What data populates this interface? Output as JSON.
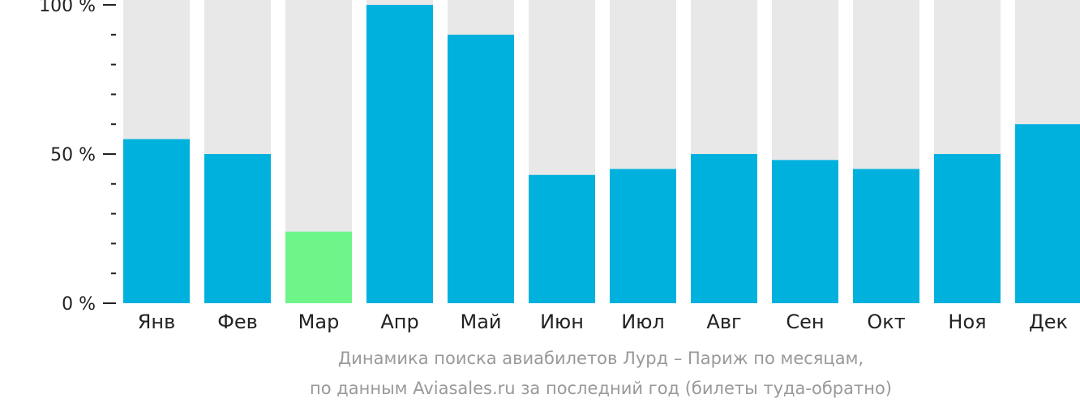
{
  "chart_data": {
    "type": "bar",
    "categories": [
      "Янв",
      "Фев",
      "Мар",
      "Апр",
      "Май",
      "Июн",
      "Июл",
      "Авг",
      "Сен",
      "Окт",
      "Ноя",
      "Дек"
    ],
    "values": [
      55,
      50,
      24,
      100,
      90,
      43,
      45,
      50,
      48,
      45,
      50,
      60
    ],
    "highlight_index": 2,
    "ylim": [
      0,
      100
    ],
    "y_ticks": [
      {
        "value": 0,
        "label": "0 %"
      },
      {
        "value": 50,
        "label": "50 %"
      },
      {
        "value": 100,
        "label": "100 %"
      }
    ],
    "minor_tick_step": 10,
    "title": "",
    "xlabel": "",
    "ylabel": "",
    "grid": false,
    "colors": {
      "bar": "#00b1de",
      "highlight": "#6ef58a",
      "background_bar": "#e8e8e8",
      "axis": "#222222",
      "caption": "#999999"
    }
  },
  "caption": {
    "line1": "Динамика поиска авиабилетов Лурд – Париж по месяцам,",
    "line2": "по данным Aviasales.ru за последний год (билеты туда-обратно)"
  }
}
